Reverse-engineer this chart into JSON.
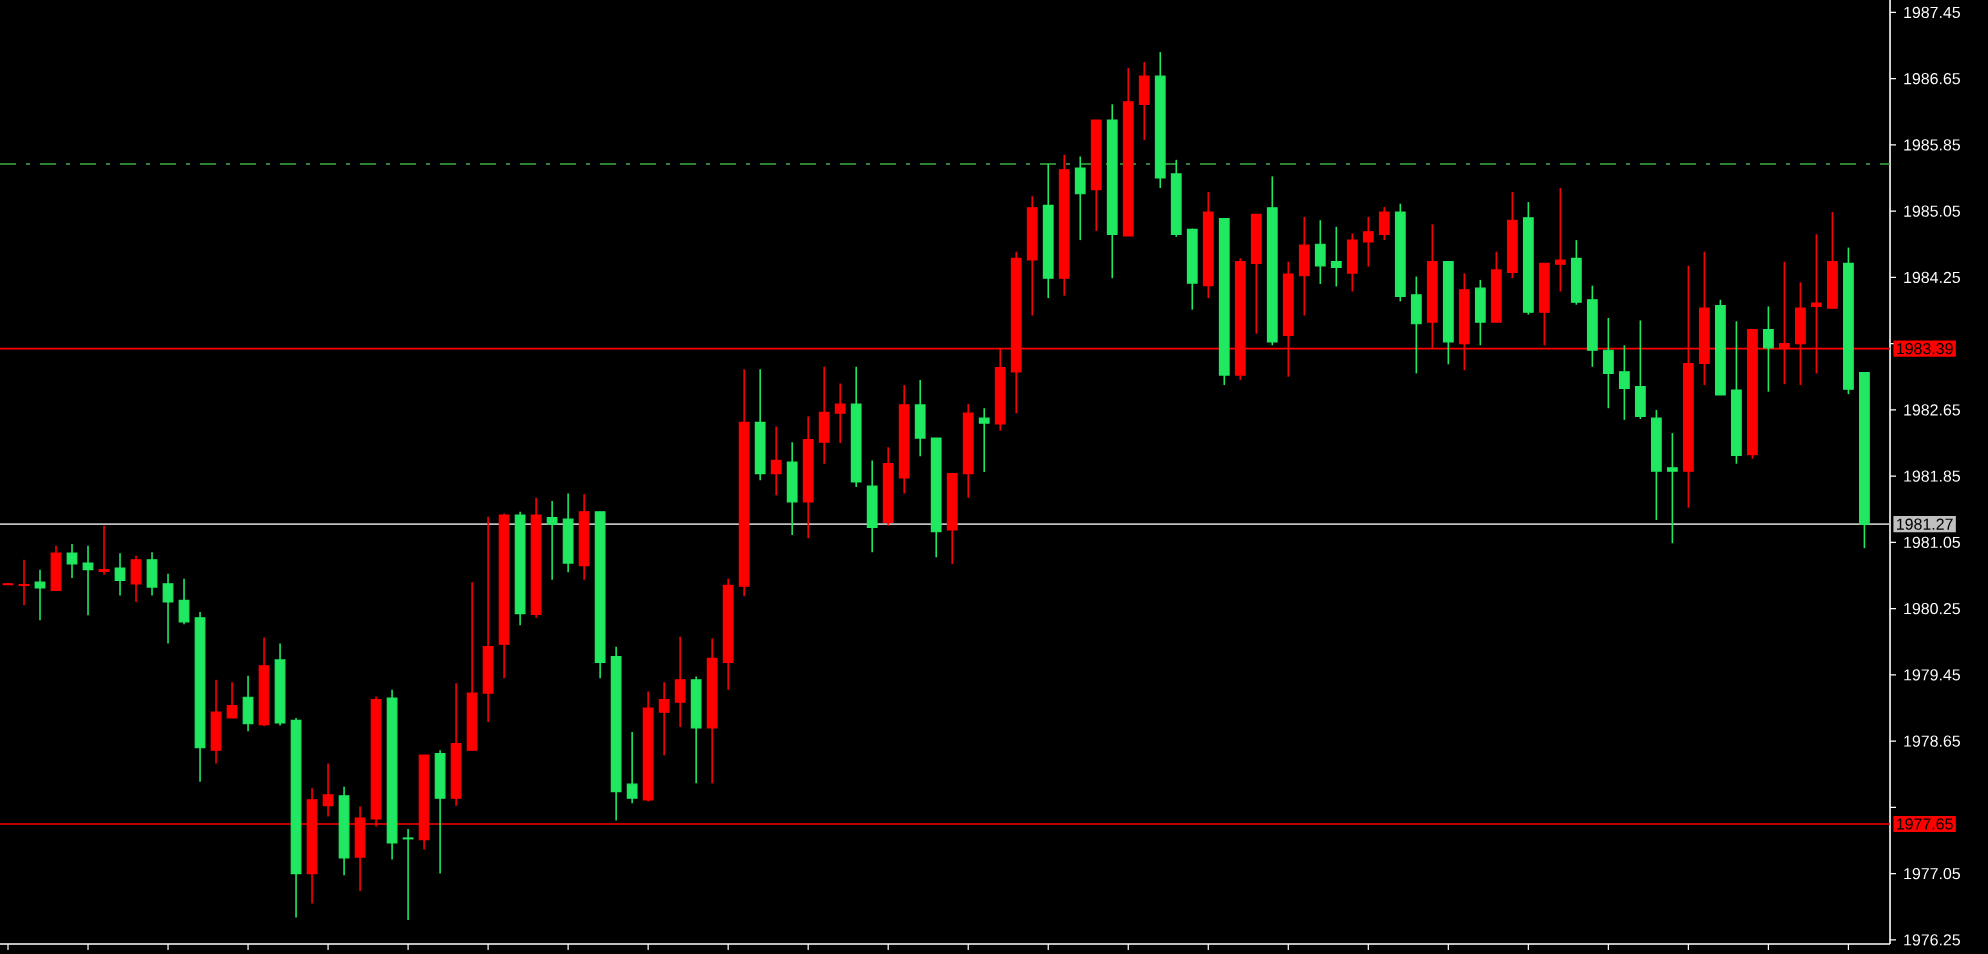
{
  "chart_data": {
    "type": "candlestick",
    "categories": [
      null,
      null,
      null,
      null,
      null,
      null,
      null,
      null,
      null,
      null,
      null,
      null,
      null,
      null,
      null,
      null,
      null,
      null,
      null,
      null,
      null,
      null,
      null,
      null,
      null,
      null,
      null,
      null,
      null,
      null,
      null,
      null,
      null,
      null,
      null,
      null,
      null,
      null,
      null,
      null,
      null,
      null,
      null,
      null,
      null,
      null,
      null,
      null,
      null,
      null,
      null,
      null,
      null,
      null,
      null,
      null,
      null,
      null,
      null,
      null,
      null,
      null,
      null,
      null,
      null,
      null,
      null,
      null,
      null,
      null,
      null,
      null,
      null,
      null,
      null,
      null,
      null,
      null,
      null,
      null,
      null,
      null,
      null,
      null,
      null,
      null,
      null,
      null,
      null,
      null,
      null,
      null,
      null,
      null,
      null,
      null,
      null,
      null,
      null,
      null,
      null,
      null,
      null,
      null,
      null,
      null,
      null,
      null,
      null,
      null,
      null,
      null,
      null,
      null,
      null,
      null,
      null
    ],
    "ohlc": [
      [
        1980.54,
        1980.55,
        1980.54,
        1980.55
      ],
      [
        1980.53,
        1980.84,
        1980.29,
        1980.54
      ],
      [
        1980.57,
        1980.72,
        1980.11,
        1980.5
      ],
      [
        1980.47,
        1981.01,
        1980.47,
        1980.92
      ],
      [
        1980.92,
        1981.03,
        1980.62,
        1980.79
      ],
      [
        1980.8,
        1981.01,
        1980.17,
        1980.72
      ],
      [
        1980.7,
        1981.25,
        1980.66,
        1980.72
      ],
      [
        1980.74,
        1980.92,
        1980.41,
        1980.59
      ],
      [
        1980.55,
        1980.89,
        1980.33,
        1980.84
      ],
      [
        1980.84,
        1980.93,
        1980.41,
        1980.51
      ],
      [
        1980.55,
        1980.67,
        1979.83,
        1980.33
      ],
      [
        1980.35,
        1980.61,
        1980.06,
        1980.09
      ],
      [
        1980.14,
        1980.21,
        1978.16,
        1978.57
      ],
      [
        1978.54,
        1979.39,
        1978.38,
        1979.0
      ],
      [
        1978.93,
        1979.36,
        1978.93,
        1979.08
      ],
      [
        1979.18,
        1979.44,
        1978.77,
        1978.86
      ],
      [
        1978.85,
        1979.9,
        1978.83,
        1979.56
      ],
      [
        1979.63,
        1979.83,
        1978.84,
        1978.87
      ],
      [
        1978.9,
        1978.93,
        1976.52,
        1977.05
      ],
      [
        1977.05,
        1978.08,
        1976.69,
        1977.94
      ],
      [
        1977.87,
        1978.38,
        1977.74,
        1978.0
      ],
      [
        1977.99,
        1978.1,
        1977.03,
        1977.24
      ],
      [
        1977.25,
        1977.86,
        1976.84,
        1977.72
      ],
      [
        1977.71,
        1979.19,
        1977.62,
        1979.15
      ],
      [
        1979.17,
        1979.27,
        1977.22,
        1977.42
      ],
      [
        1977.48,
        1977.59,
        1976.49,
        1977.47
      ],
      [
        1977.46,
        1978.48,
        1977.34,
        1978.48
      ],
      [
        1978.5,
        1978.54,
        1977.05,
        1977.96
      ],
      [
        1977.96,
        1979.35,
        1977.87,
        1978.62
      ],
      [
        1978.54,
        1980.57,
        1978.54,
        1979.23
      ],
      [
        1979.23,
        1981.36,
        1978.88,
        1979.79
      ],
      [
        1979.82,
        1981.4,
        1979.41,
        1981.38
      ],
      [
        1981.38,
        1981.42,
        1980.05,
        1980.19
      ],
      [
        1980.18,
        1981.59,
        1980.14,
        1981.38
      ],
      [
        1981.35,
        1981.55,
        1980.6,
        1981.27
      ],
      [
        1981.33,
        1981.64,
        1980.69,
        1980.8
      ],
      [
        1980.77,
        1981.63,
        1980.6,
        1981.42
      ],
      [
        1981.42,
        1981.42,
        1979.41,
        1979.6
      ],
      [
        1979.67,
        1979.79,
        1977.69,
        1978.04
      ],
      [
        1978.13,
        1978.76,
        1977.9,
        1977.96
      ],
      [
        1977.94,
        1979.25,
        1977.92,
        1979.05
      ],
      [
        1979.0,
        1979.36,
        1978.48,
        1979.15
      ],
      [
        1979.12,
        1979.91,
        1978.82,
        1979.39
      ],
      [
        1979.39,
        1979.43,
        1978.14,
        1978.81
      ],
      [
        1978.81,
        1979.89,
        1978.14,
        1979.65
      ],
      [
        1979.6,
        1980.61,
        1979.27,
        1980.53
      ],
      [
        1980.52,
        1983.14,
        1980.4,
        1982.5
      ],
      [
        1982.5,
        1983.14,
        1981.8,
        1981.88
      ],
      [
        1981.88,
        1982.45,
        1981.62,
        1982.04
      ],
      [
        1982.02,
        1982.26,
        1981.14,
        1981.54
      ],
      [
        1981.54,
        1982.57,
        1981.1,
        1982.29
      ],
      [
        1982.26,
        1983.17,
        1982.0,
        1982.62
      ],
      [
        1982.61,
        1982.97,
        1982.25,
        1982.72
      ],
      [
        1982.72,
        1983.17,
        1981.72,
        1981.78
      ],
      [
        1981.73,
        1982.04,
        1980.93,
        1981.23
      ],
      [
        1981.29,
        1982.2,
        1981.25,
        1982.0
      ],
      [
        1981.83,
        1982.95,
        1981.64,
        1982.71
      ],
      [
        1982.71,
        1983.01,
        1982.09,
        1982.31
      ],
      [
        1982.31,
        1982.31,
        1980.87,
        1981.18
      ],
      [
        1981.2,
        1981.88,
        1980.79,
        1981.88
      ],
      [
        1981.88,
        1982.72,
        1981.59,
        1982.61
      ],
      [
        1982.55,
        1982.67,
        1981.9,
        1982.49
      ],
      [
        1982.48,
        1983.4,
        1982.4,
        1983.16
      ],
      [
        1983.11,
        1984.56,
        1982.61,
        1984.48
      ],
      [
        1984.46,
        1985.23,
        1983.79,
        1985.09
      ],
      [
        1985.12,
        1985.62,
        1984.0,
        1984.24
      ],
      [
        1984.24,
        1985.73,
        1984.03,
        1985.55
      ],
      [
        1985.57,
        1985.71,
        1984.7,
        1985.26
      ],
      [
        1985.31,
        1986.15,
        1984.81,
        1986.15
      ],
      [
        1986.15,
        1986.34,
        1984.24,
        1984.77
      ],
      [
        1984.75,
        1986.78,
        1984.75,
        1986.37
      ],
      [
        1986.34,
        1986.85,
        1985.91,
        1986.68
      ],
      [
        1986.68,
        1986.97,
        1985.33,
        1985.45
      ],
      [
        1985.5,
        1985.67,
        1984.74,
        1984.77
      ],
      [
        1984.83,
        1984.84,
        1983.86,
        1984.18
      ],
      [
        1984.15,
        1985.28,
        1984.0,
        1985.04
      ],
      [
        1984.96,
        1984.96,
        1982.95,
        1983.07
      ],
      [
        1983.07,
        1984.48,
        1983.01,
        1984.44
      ],
      [
        1984.42,
        1985.01,
        1983.57,
        1985.01
      ],
      [
        1985.09,
        1985.47,
        1983.43,
        1983.47
      ],
      [
        1983.55,
        1984.44,
        1983.05,
        1984.29
      ],
      [
        1984.27,
        1984.98,
        1983.79,
        1984.64
      ],
      [
        1984.65,
        1984.94,
        1984.17,
        1984.39
      ],
      [
        1984.44,
        1984.86,
        1984.14,
        1984.37
      ],
      [
        1984.3,
        1984.78,
        1984.08,
        1984.7
      ],
      [
        1984.68,
        1984.98,
        1984.38,
        1984.8
      ],
      [
        1984.77,
        1985.1,
        1984.7,
        1985.04
      ],
      [
        1985.04,
        1985.14,
        1983.96,
        1984.02
      ],
      [
        1984.04,
        1984.26,
        1983.09,
        1983.69
      ],
      [
        1983.71,
        1984.89,
        1983.39,
        1984.44
      ],
      [
        1984.44,
        1984.44,
        1983.2,
        1983.47
      ],
      [
        1983.45,
        1984.3,
        1983.13,
        1984.1
      ],
      [
        1984.12,
        1984.22,
        1983.43,
        1983.71
      ],
      [
        1983.71,
        1984.56,
        1983.71,
        1984.34
      ],
      [
        1984.31,
        1985.28,
        1984.24,
        1984.94
      ],
      [
        1984.97,
        1985.16,
        1983.8,
        1983.83
      ],
      [
        1983.83,
        1984.42,
        1983.43,
        1984.42
      ],
      [
        1984.41,
        1985.33,
        1984.08,
        1984.46
      ],
      [
        1984.48,
        1984.7,
        1983.92,
        1983.95
      ],
      [
        1983.98,
        1984.15,
        1983.17,
        1983.37
      ],
      [
        1983.37,
        1983.76,
        1982.67,
        1983.09
      ],
      [
        1983.11,
        1983.43,
        1982.53,
        1982.91
      ],
      [
        1982.93,
        1983.73,
        1982.54,
        1982.57
      ],
      [
        1982.55,
        1982.65,
        1981.32,
        1981.91
      ],
      [
        1981.95,
        1982.37,
        1981.04,
        1981.91
      ],
      [
        1981.91,
        1984.39,
        1981.47,
        1983.21
      ],
      [
        1983.21,
        1984.56,
        1982.95,
        1983.88
      ],
      [
        1983.91,
        1983.98,
        1982.83,
        1982.83
      ],
      [
        1982.89,
        1983.72,
        1982.0,
        1982.1
      ],
      [
        1982.11,
        1983.62,
        1982.06,
        1983.62
      ],
      [
        1983.62,
        1983.9,
        1982.87,
        1983.4
      ],
      [
        1983.39,
        1984.44,
        1982.96,
        1983.45
      ],
      [
        1983.45,
        1984.19,
        1982.95,
        1983.88
      ],
      [
        1983.9,
        1984.77,
        1983.09,
        1983.94
      ],
      [
        1983.88,
        1985.04,
        1983.88,
        1984.44
      ],
      [
        1984.42,
        1984.61,
        1982.84,
        1982.9
      ],
      [
        1983.1,
        1983.1,
        1980.98,
        1981.27
      ]
    ],
    "colors": [
      "#ff0000",
      "#ff0000",
      "#20e860",
      "#ff0000",
      "#20e860",
      "#20e860",
      "#ff0000",
      "#20e860",
      "#ff0000",
      "#20e860",
      "#20e860",
      "#20e860",
      "#20e860",
      "#ff0000",
      "#ff0000",
      "#20e860",
      "#ff0000",
      "#20e860",
      "#20e860",
      "#ff0000",
      "#ff0000",
      "#20e860",
      "#ff0000",
      "#ff0000",
      "#20e860",
      "#20e860",
      "#ff0000",
      "#20e860",
      "#ff0000",
      "#ff0000",
      "#ff0000",
      "#ff0000",
      "#20e860",
      "#ff0000",
      "#20e860",
      "#20e860",
      "#ff0000",
      "#20e860",
      "#20e860",
      "#20e860",
      "#ff0000",
      "#ff0000",
      "#ff0000",
      "#20e860",
      "#ff0000",
      "#ff0000",
      "#ff0000",
      "#20e860",
      "#ff0000",
      "#20e860",
      "#ff0000",
      "#ff0000",
      "#ff0000",
      "#20e860",
      "#20e860",
      "#ff0000",
      "#ff0000",
      "#20e860",
      "#20e860",
      "#ff0000",
      "#ff0000",
      "#20e860",
      "#ff0000",
      "#ff0000",
      "#ff0000",
      "#20e860",
      "#ff0000",
      "#20e860",
      "#ff0000",
      "#20e860",
      "#ff0000",
      "#ff0000",
      "#20e860",
      "#20e860",
      "#20e860",
      "#ff0000",
      "#20e860",
      "#ff0000",
      "#ff0000",
      "#20e860",
      "#ff0000",
      "#ff0000",
      "#20e860",
      "#20e860",
      "#ff0000",
      "#ff0000",
      "#ff0000",
      "#20e860",
      "#20e860",
      "#ff0000",
      "#20e860",
      "#ff0000",
      "#20e860",
      "#ff0000",
      "#ff0000",
      "#20e860",
      "#ff0000",
      "#ff0000",
      "#20e860",
      "#20e860",
      "#20e860",
      "#20e860",
      "#20e860",
      "#20e860",
      "#20e860",
      "#ff0000",
      "#ff0000",
      "#20e860",
      "#20e860",
      "#ff0000",
      "#20e860",
      "#ff0000",
      "#ff0000",
      "#ff0000",
      "#ff0000",
      "#20e860",
      "#20e860"
    ],
    "ylim": [
      1976.2,
      1987.6
    ],
    "yticks": [
      1976.25,
      1977.05,
      {
        "value": 1977.85,
        "label": null
      },
      1978.65,
      1979.45,
      1980.25,
      1981.05,
      1981.85,
      1982.65,
      {
        "value": 1983.45,
        "label": null
      },
      1984.25,
      1985.05,
      1985.85,
      1986.65,
      1987.45
    ],
    "ref_lines": [
      {
        "axis": "y",
        "value": 1983.39,
        "label": "1983.39",
        "color": "#ff0000"
      },
      {
        "axis": "y",
        "value": 1981.27,
        "label": "1981.27",
        "color": "#c0c0c0"
      },
      {
        "axis": "y",
        "value": 1977.65,
        "label": "1977.65",
        "color": "#ff0000"
      },
      {
        "axis": "y",
        "value": 1985.62,
        "color": "#3cb043",
        "line_style": "dashed"
      }
    ]
  }
}
